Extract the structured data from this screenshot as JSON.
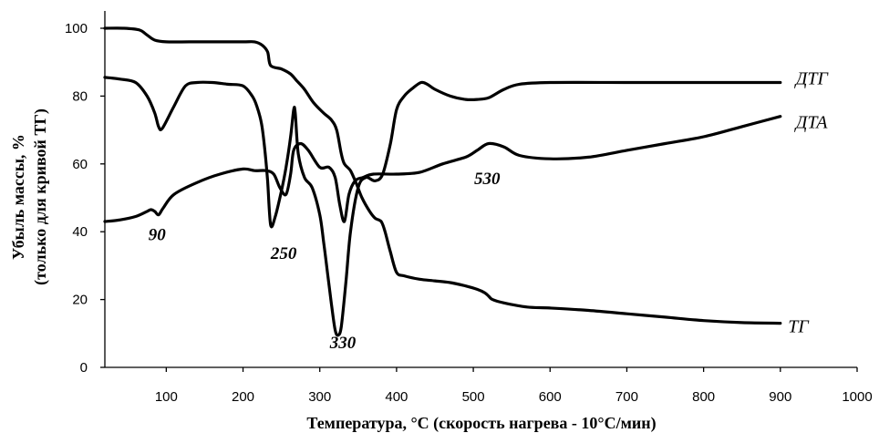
{
  "chart_data": {
    "type": "line",
    "xlabel": "Температура, °С (скорость нагрева - 10°С/мин)",
    "ylabel": "Убыль массы, %",
    "ylabel2": "(только для кривой ТГ)",
    "xlim": [
      20,
      1000
    ],
    "ylim": [
      0,
      100
    ],
    "x_ticks": [
      100,
      200,
      300,
      400,
      500,
      600,
      700,
      800,
      900,
      1000
    ],
    "y_ticks": [
      0,
      20,
      40,
      60,
      80,
      100
    ],
    "grid": false,
    "series": [
      {
        "name": "ТГ",
        "x": [
          20,
          45,
          65,
          75,
          85,
          100,
          130,
          160,
          200,
          215,
          225,
          232,
          236,
          250,
          262,
          270,
          280,
          292,
          305,
          315,
          322,
          328,
          332,
          340,
          348,
          355,
          365,
          372,
          380,
          385,
          392,
          400,
          410,
          430,
          450,
          470,
          490,
          505,
          515,
          520,
          525,
          540,
          570,
          600,
          650,
          700,
          750,
          800,
          850,
          900
        ],
        "y": [
          100,
          100,
          99.5,
          98,
          96.5,
          96,
          96,
          96,
          96,
          96,
          95,
          93,
          89,
          88,
          86.5,
          84.5,
          82,
          78,
          75,
          73,
          70,
          63,
          60,
          58,
          54,
          50,
          46,
          44,
          43,
          40,
          34,
          28,
          27,
          26,
          25.5,
          25,
          24,
          23,
          22,
          21,
          20,
          19,
          17.8,
          17.5,
          16.8,
          15.8,
          14.8,
          13.8,
          13.2,
          13
        ]
      },
      {
        "name": "ДТГ",
        "x": [
          20,
          40,
          60,
          75,
          85,
          90,
          95,
          110,
          125,
          140,
          160,
          180,
          200,
          212,
          218,
          224,
          228,
          232,
          236,
          242,
          250,
          256,
          262,
          266,
          268,
          272,
          280,
          290,
          300,
          305,
          310,
          315,
          320,
          324,
          328,
          334,
          340,
          350,
          360,
          372,
          382,
          392,
          400,
          410,
          422,
          432,
          440,
          450,
          470,
          490,
          505,
          520,
          540,
          560,
          600,
          700,
          800,
          900
        ],
        "y": [
          85.5,
          85,
          84,
          80,
          75,
          71,
          70.5,
          77,
          83,
          84,
          84,
          83.5,
          83,
          80,
          77,
          72,
          65,
          55,
          42,
          44.5,
          52,
          59,
          68,
          76,
          75,
          63,
          56,
          53,
          45,
          37,
          28,
          19,
          11,
          9.5,
          12,
          25,
          40,
          53,
          56,
          55,
          57,
          66,
          76,
          80,
          82.5,
          84,
          83.5,
          82,
          80,
          79,
          79,
          79.5,
          82,
          83.5,
          84,
          84,
          84,
          84
        ]
      },
      {
        "name": "ДТА",
        "x": [
          20,
          40,
          60,
          75,
          80,
          85,
          90,
          96,
          110,
          140,
          170,
          200,
          215,
          230,
          240,
          248,
          256,
          262,
          266,
          275,
          285,
          300,
          312,
          320,
          326,
          332,
          338,
          346,
          356,
          370,
          400,
          430,
          460,
          490,
          505,
          520,
          540,
          560,
          600,
          650,
          700,
          750,
          800,
          850,
          900
        ],
        "y": [
          43,
          43.5,
          44.5,
          46,
          46.5,
          46,
          45,
          47,
          51,
          54.5,
          57,
          58.5,
          58,
          58,
          57,
          53,
          51,
          57,
          64,
          66,
          64,
          59,
          59,
          56,
          48,
          43,
          51,
          55,
          56,
          57,
          57,
          57.5,
          60,
          62,
          64,
          66,
          65,
          62.5,
          61.5,
          62,
          64,
          66,
          68,
          71,
          74
        ]
      }
    ],
    "series_labels": [
      {
        "text": "ДТГ",
        "x": 920,
        "y": 83.5
      },
      {
        "text": "ДТА",
        "x": 920,
        "y": 70.5
      },
      {
        "text": "ТГ",
        "x": 910,
        "y": 10.3
      }
    ],
    "annotations": [
      {
        "text": "90",
        "x": 88,
        "y": 37.5
      },
      {
        "text": "250",
        "x": 253,
        "y": 32
      },
      {
        "text": "330",
        "x": 330,
        "y": 5.6
      },
      {
        "text": "530",
        "x": 518,
        "y": 54
      }
    ]
  }
}
